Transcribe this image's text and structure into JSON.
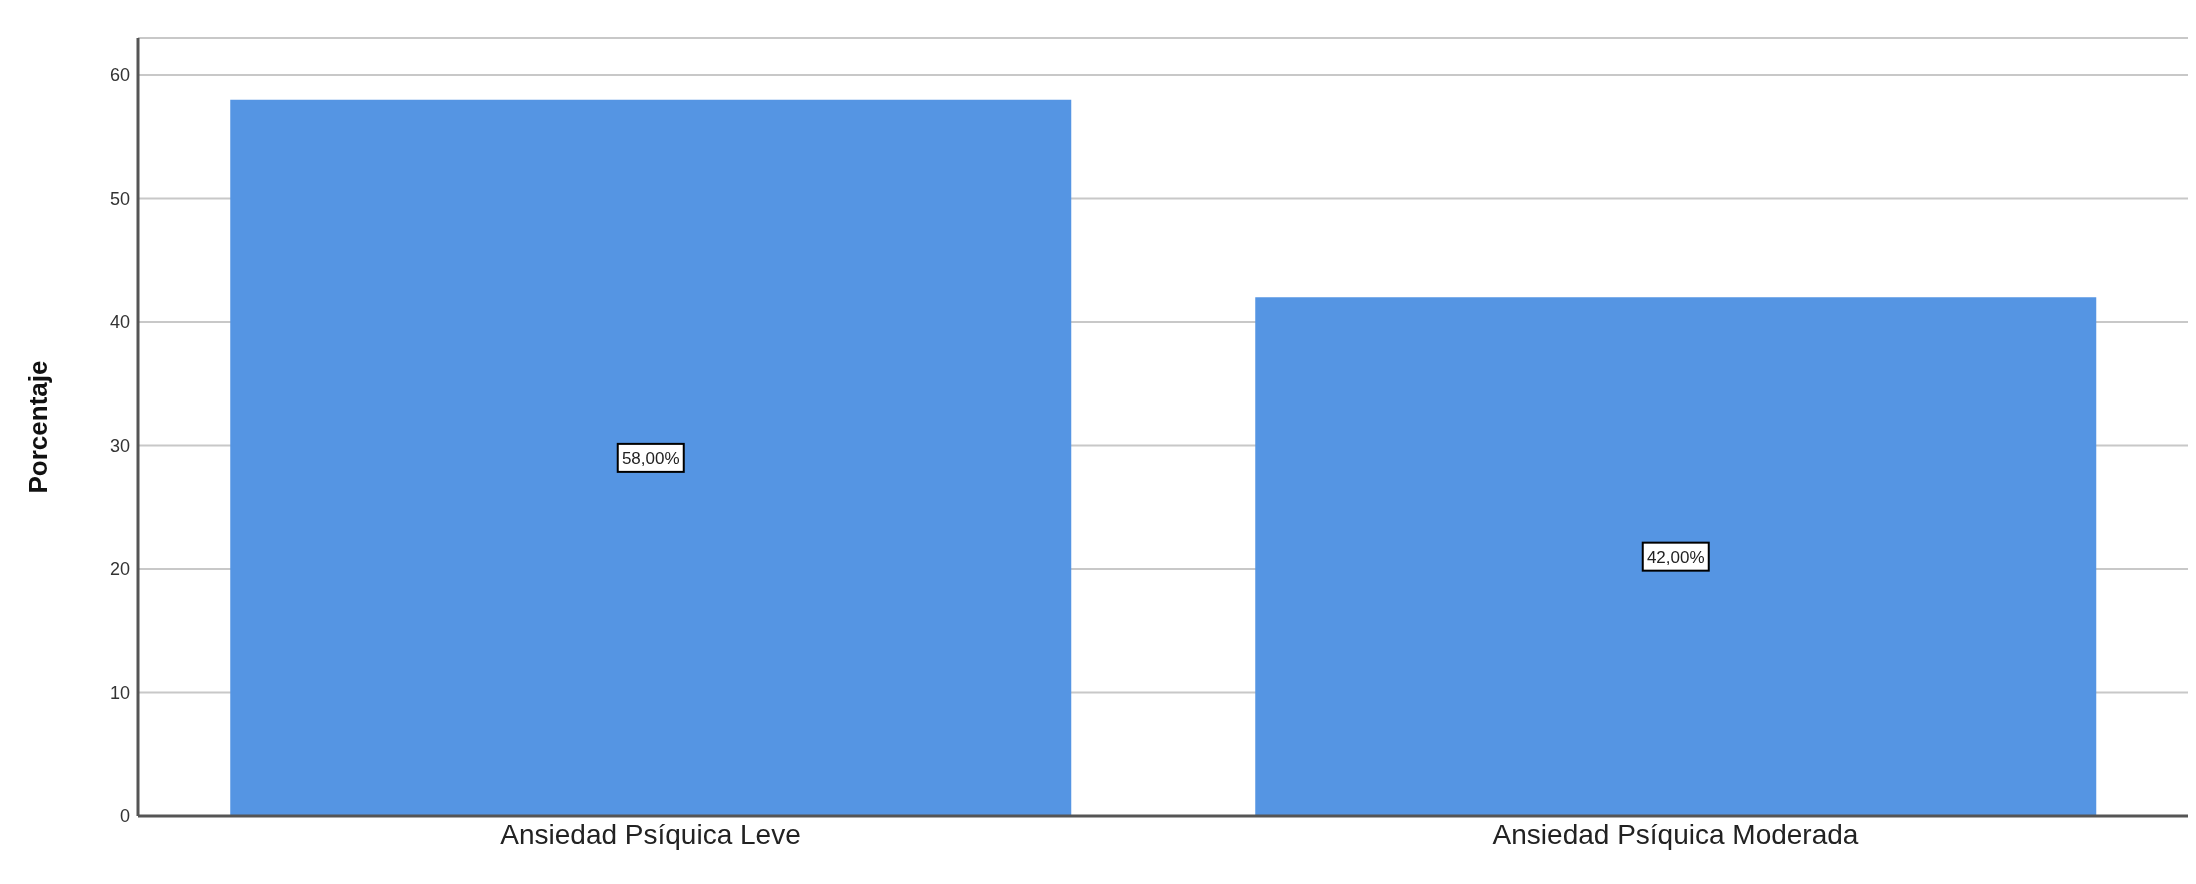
{
  "chart_data": {
    "type": "bar",
    "ylabel": "Porcentaje",
    "categories": [
      "Ansiedad Psíquica Leve",
      "Ansiedad Psíquica Moderada"
    ],
    "values": [
      58,
      42
    ],
    "value_labels": [
      "58,00%",
      "42,00%"
    ],
    "color": "#5595e3",
    "ylim": [
      0,
      63
    ],
    "yticks": [
      0,
      10,
      20,
      30,
      40,
      50,
      60
    ],
    "grid": "y"
  }
}
